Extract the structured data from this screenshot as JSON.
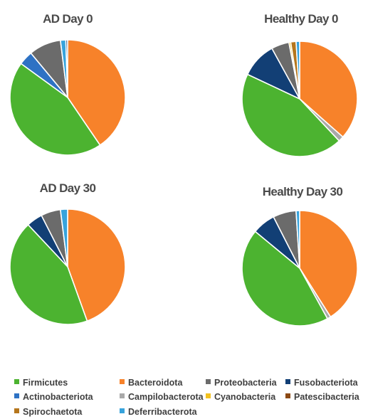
{
  "colors": {
    "Firmicutes": "#4cb330",
    "Bacteroidota": "#f7822a",
    "Proteobacteria": "#6b6b6b",
    "Fusobacteriota": "#123f75",
    "Actinobacteriota": "#2e72c4",
    "Campilobacterota": "#a9a9a9",
    "Cyanobacteria": "#f3c21f",
    "Patescibacteria": "#8c4a14",
    "Spirochaetota": "#b5761c",
    "Deferribacterota": "#37a3dc"
  },
  "legend": [
    "Firmicutes",
    "Bacteroidota",
    "Proteobacteria",
    "Fusobacteriota",
    "Actinobacteriota",
    "Campilobacterota",
    "Cyanobacteria",
    "Patescibacteria",
    "Spirochaetota",
    "Deferribacterota"
  ],
  "chart_data": [
    {
      "type": "pie",
      "title": "AD Day 0",
      "slices": [
        {
          "label": "Bacteroidota",
          "value": 40.5
        },
        {
          "label": "Firmicutes",
          "value": 44.5
        },
        {
          "label": "Actinobacteriota",
          "value": 4.0
        },
        {
          "label": "Proteobacteria",
          "value": 9.0
        },
        {
          "label": "Deferribacterota",
          "value": 1.5
        },
        {
          "label": "Fusobacteriota",
          "value": 0.5
        }
      ]
    },
    {
      "type": "pie",
      "title": "Healthy Day 0",
      "slices": [
        {
          "label": "Bacteroidota",
          "value": 36.5
        },
        {
          "label": "Campilobacterota",
          "value": 1.5
        },
        {
          "label": "Firmicutes",
          "value": 44.0
        },
        {
          "label": "Fusobacteriota",
          "value": 10.0
        },
        {
          "label": "Proteobacteria",
          "value": 5.0
        },
        {
          "label": "Cyanobacteria",
          "value": 0.5
        },
        {
          "label": "Spirochaetota",
          "value": 1.5
        },
        {
          "label": "Deferribacterota",
          "value": 1.0
        }
      ]
    },
    {
      "type": "pie",
      "title": "AD Day 30",
      "slices": [
        {
          "label": "Bacteroidota",
          "value": 44.5
        },
        {
          "label": "Firmicutes",
          "value": 43.5
        },
        {
          "label": "Fusobacteriota",
          "value": 4.5
        },
        {
          "label": "Proteobacteria",
          "value": 5.5
        },
        {
          "label": "Deferribacterota",
          "value": 2.0
        }
      ]
    },
    {
      "type": "pie",
      "title": "Healthy Day 30",
      "slices": [
        {
          "label": "Bacteroidota",
          "value": 41.0
        },
        {
          "label": "Campilobacterota",
          "value": 1.0
        },
        {
          "label": "Firmicutes",
          "value": 44.0
        },
        {
          "label": "Fusobacteriota",
          "value": 6.5
        },
        {
          "label": "Proteobacteria",
          "value": 6.5
        },
        {
          "label": "Deferribacterota",
          "value": 1.0
        }
      ]
    }
  ]
}
